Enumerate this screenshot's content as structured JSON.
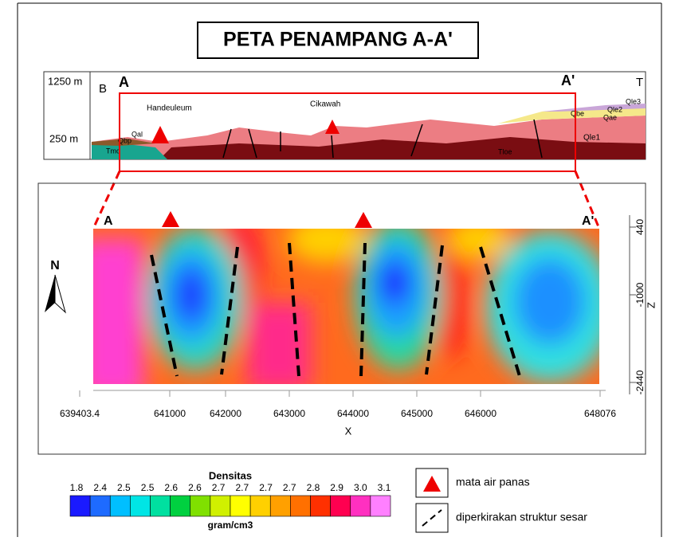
{
  "title": "PETA PENAMPANG A-A'",
  "section": {
    "elevation_labels": [
      "1250 m",
      "250 m"
    ],
    "direction_labels": [
      "B",
      "T"
    ],
    "profile_labels": [
      "A",
      "A'"
    ],
    "places": [
      "Handeuleum",
      "Cikawah"
    ],
    "units": [
      "Qal",
      "Qbp",
      "Tmd",
      "Qbe",
      "Qle2",
      "Qle3",
      "Qae",
      "Qle1",
      "Tloe"
    ]
  },
  "model": {
    "profile_labels": [
      "A",
      "A'"
    ],
    "north": "N",
    "z_ticks": [
      "440",
      "-1000",
      "-2440"
    ],
    "z_label": "Z",
    "x_ticks": [
      "639403.4",
      "641000",
      "642000",
      "643000",
      "644000",
      "645000",
      "646000",
      "648076"
    ],
    "x_label": "X"
  },
  "legend": {
    "title": "Densitas",
    "scale_labels": [
      "1.8",
      "2.4",
      "2.5",
      "2.5",
      "2.6",
      "2.6",
      "2.7",
      "2.7",
      "2.7",
      "2.7",
      "2.8",
      "2.9",
      "3.0",
      "3.1"
    ],
    "unit": "gram/cm3",
    "items": [
      "mata air panas",
      "diperkirakan struktur sesar"
    ]
  }
}
